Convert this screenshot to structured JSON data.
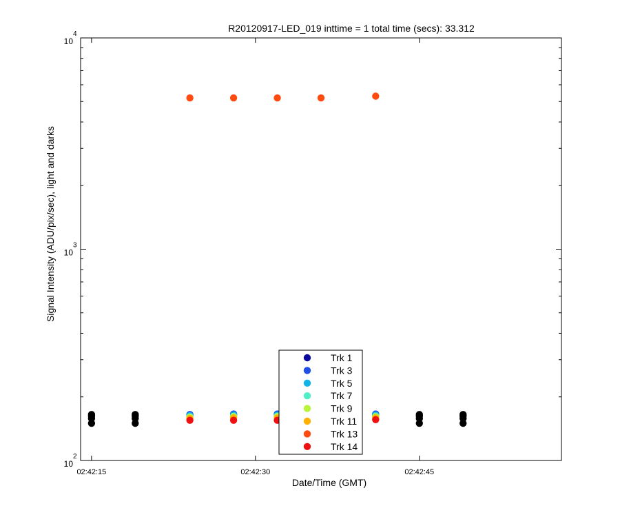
{
  "chart_data": {
    "type": "scatter",
    "title": "R20120917-LED_019 inttime = 1 total time (secs): 33.312",
    "xlabel": "Date/Time (GMT)",
    "ylabel": "Signal Intensity (ADU/pix/sec), light and darks",
    "y_scale": "log",
    "ylim": [
      100,
      10000
    ],
    "y_ticks": [
      {
        "base": "10",
        "exp": "2",
        "value": 100
      },
      {
        "base": "10",
        "exp": "3",
        "value": 1000
      },
      {
        "base": "10",
        "exp": "4",
        "value": 10000
      }
    ],
    "xlim": [
      "02:42:14",
      "02:42:58"
    ],
    "x_ticks": [
      "02:42:15",
      "02:42:30",
      "02:42:45"
    ],
    "legend_position": "bottom-center",
    "grid": false,
    "series": [
      {
        "name": "Trk 1",
        "color": "#0a0a9e"
      },
      {
        "name": "Trk 3",
        "color": "#1f4fe6"
      },
      {
        "name": "Trk 5",
        "color": "#11b4e9"
      },
      {
        "name": "Trk 7",
        "color": "#4ff0c8"
      },
      {
        "name": "Trk 9",
        "color": "#b8f53a"
      },
      {
        "name": "Trk 11",
        "color": "#ffb000"
      },
      {
        "name": "Trk 13",
        "color": "#ff4b10"
      },
      {
        "name": "Trk 14",
        "color": "#ee1010"
      }
    ],
    "light_points": [
      {
        "series": "Trk 1",
        "x": [
          "02:42:24",
          "02:42:28",
          "02:42:32",
          "02:42:36",
          "02:42:41"
        ],
        "y": [
          164,
          165,
          165,
          164,
          165
        ]
      },
      {
        "series": "Trk 3",
        "x": [
          "02:42:24",
          "02:42:28",
          "02:42:32",
          "02:42:36",
          "02:42:41"
        ],
        "y": [
          165,
          166,
          166,
          165,
          166
        ]
      },
      {
        "series": "Trk 5",
        "x": [
          "02:42:24",
          "02:42:28",
          "02:42:32",
          "02:42:36",
          "02:42:41"
        ],
        "y": [
          163,
          164,
          164,
          163,
          164
        ]
      },
      {
        "series": "Trk 7",
        "x": [
          "02:42:24",
          "02:42:28",
          "02:42:32",
          "02:42:36",
          "02:42:41"
        ],
        "y": [
          161,
          162,
          162,
          161,
          162
        ]
      },
      {
        "series": "Trk 9",
        "x": [
          "02:42:24",
          "02:42:28",
          "02:42:32",
          "02:42:36",
          "02:42:41"
        ],
        "y": [
          160,
          161,
          161,
          160,
          161
        ]
      },
      {
        "series": "Trk 11",
        "x": [
          "02:42:24",
          "02:42:28",
          "02:42:32",
          "02:42:36",
          "02:42:41"
        ],
        "y": [
          158,
          159,
          159,
          158,
          159
        ]
      },
      {
        "series": "Trk 13",
        "x": [
          "02:42:24",
          "02:42:28",
          "02:42:32",
          "02:42:36",
          "02:42:41"
        ],
        "y": [
          5200,
          5200,
          5200,
          5200,
          5300
        ]
      },
      {
        "series": "Trk 14",
        "x": [
          "02:42:24",
          "02:42:28",
          "02:42:32",
          "02:42:36",
          "02:42:41"
        ],
        "y": [
          155,
          155,
          155,
          155,
          156
        ]
      }
    ],
    "dark_points": {
      "color": "#000000",
      "x": [
        "02:42:15",
        "02:42:19",
        "02:42:45",
        "02:42:49"
      ],
      "y": [
        [
          165,
          162,
          158,
          150
        ],
        [
          165,
          162,
          158,
          150
        ],
        [
          165,
          162,
          158,
          150
        ],
        [
          165,
          162,
          158,
          150
        ]
      ]
    }
  }
}
